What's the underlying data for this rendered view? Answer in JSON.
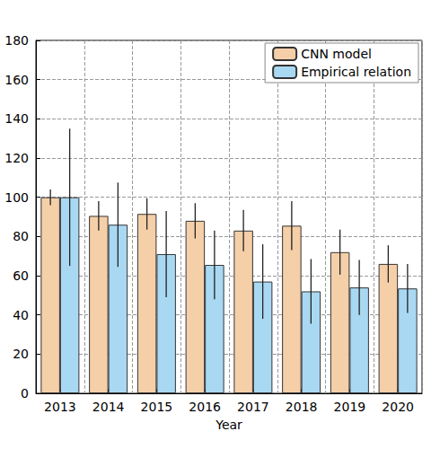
{
  "chart_data": {
    "type": "bar",
    "x_label": "Year",
    "categories": [
      "2013",
      "2014",
      "2015",
      "2016",
      "2017",
      "2018",
      "2019",
      "2020"
    ],
    "series": [
      {
        "name": "CNN model",
        "color": "#f5cfa8",
        "values": [
          100,
          90.5,
          91.5,
          88,
          83,
          85.5,
          72,
          66
        ],
        "errors": [
          4,
          7.5,
          8,
          9,
          10.5,
          12.5,
          11.5,
          9.5
        ]
      },
      {
        "name": "Empirical relation",
        "color": "#a9d8f2",
        "values": [
          100,
          86,
          71,
          65.5,
          57,
          52,
          54,
          53.5
        ],
        "errors": [
          35,
          21.5,
          22,
          17.5,
          19,
          16.5,
          14,
          12.5
        ]
      }
    ],
    "ylim": [
      0,
      180
    ],
    "yticks": [
      0,
      20,
      40,
      60,
      80,
      100,
      120,
      140,
      160,
      180
    ],
    "grid": true,
    "legend": "upper right"
  }
}
